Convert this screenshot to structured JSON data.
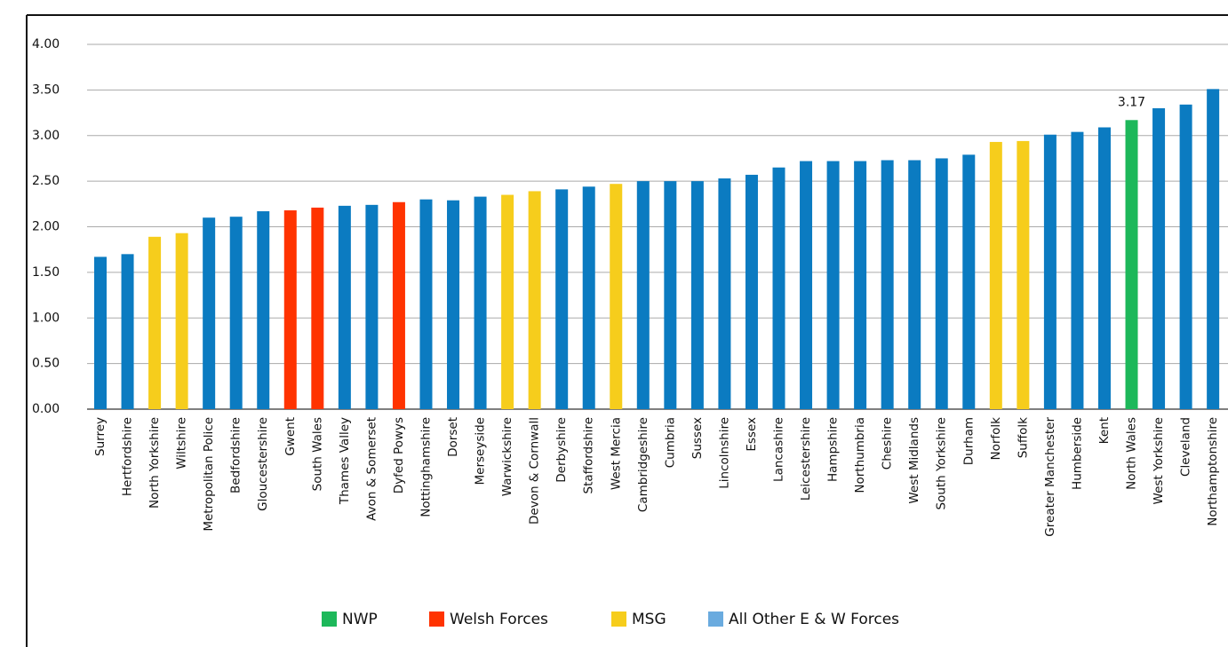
{
  "chart_data": {
    "type": "bar",
    "categories": [
      "Surrey",
      "Hertfordshire",
      "North Yorkshire",
      "Wiltshire",
      "Metropolitan Police",
      "Bedfordshire",
      "Gloucestershire",
      "Gwent",
      "South Wales",
      "Thames Valley",
      "Avon & Somerset",
      "Dyfed Powys",
      "Nottinghamshire",
      "Dorset",
      "Merseyside",
      "Warwickshire",
      "Devon & Cornwall",
      "Derbyshire",
      "Staffordshire",
      "West Mercia",
      "Cambridgeshire",
      "Cumbria",
      "Sussex",
      "Lincolnshire",
      "Essex",
      "Lancashire",
      "Leicestershire",
      "Hampshire",
      "Northumbria",
      "Cheshire",
      "West Midlands",
      "South Yorkshire",
      "Durham",
      "Norfolk",
      "Suffolk",
      "Greater Manchester",
      "Humberside",
      "Kent",
      "North Wales",
      "West Yorkshire",
      "Cleveland",
      "Northamptonshire"
    ],
    "values": [
      1.67,
      1.7,
      1.89,
      1.93,
      2.1,
      2.11,
      2.17,
      2.18,
      2.21,
      2.23,
      2.24,
      2.27,
      2.3,
      2.29,
      2.33,
      2.35,
      2.39,
      2.41,
      2.44,
      2.47,
      2.5,
      2.5,
      2.5,
      2.53,
      2.57,
      2.65,
      2.72,
      2.72,
      2.72,
      2.73,
      2.73,
      2.75,
      2.79,
      2.93,
      2.94,
      3.01,
      3.04,
      3.09,
      3.17,
      3.3,
      3.34,
      3.51
    ],
    "value_labels": [
      null,
      null,
      null,
      null,
      null,
      null,
      null,
      null,
      null,
      null,
      null,
      null,
      null,
      null,
      null,
      null,
      null,
      null,
      null,
      null,
      null,
      null,
      null,
      null,
      null,
      null,
      null,
      null,
      null,
      null,
      null,
      null,
      null,
      null,
      null,
      null,
      null,
      null,
      "3.17",
      null,
      null,
      null
    ],
    "colors": [
      "#0b7bc1",
      "#0b7bc1",
      "#f6cd1c",
      "#f6cd1c",
      "#0b7bc1",
      "#0b7bc1",
      "#0b7bc1",
      "#ff3300",
      "#ff3300",
      "#0b7bc1",
      "#0b7bc1",
      "#ff3300",
      "#0b7bc1",
      "#0b7bc1",
      "#0b7bc1",
      "#f6cd1c",
      "#f6cd1c",
      "#0b7bc1",
      "#0b7bc1",
      "#f6cd1c",
      "#0b7bc1",
      "#0b7bc1",
      "#0b7bc1",
      "#0b7bc1",
      "#0b7bc1",
      "#0b7bc1",
      "#0b7bc1",
      "#0b7bc1",
      "#0b7bc1",
      "#0b7bc1",
      "#0b7bc1",
      "#0b7bc1",
      "#0b7bc1",
      "#f6cd1c",
      "#f6cd1c",
      "#0b7bc1",
      "#0b7bc1",
      "#0b7bc1",
      "#1db85a",
      "#0b7bc1",
      "#0b7bc1",
      "#0b7bc1"
    ],
    "legend": [
      {
        "name": "NWP",
        "color": "#1db85a"
      },
      {
        "name": "Welsh Forces",
        "color": "#ff3300"
      },
      {
        "name": "MSG",
        "color": "#f6cd1c"
      },
      {
        "name": "All Other E & W Forces",
        "color": "#6aabdf"
      }
    ],
    "ylim": [
      0,
      4
    ],
    "yticks": [
      {
        "value": 0,
        "label": "0.00"
      },
      {
        "value": 0.5,
        "label": "0.50"
      },
      {
        "value": 1,
        "label": "1.00"
      },
      {
        "value": 1.5,
        "label": "1.50"
      },
      {
        "value": 2,
        "label": "2.00"
      },
      {
        "value": 2.5,
        "label": "2.50"
      },
      {
        "value": 3,
        "label": "3.00"
      },
      {
        "value": 3.5,
        "label": "3.50"
      },
      {
        "value": 4,
        "label": "4.00"
      }
    ],
    "grid": true
  }
}
